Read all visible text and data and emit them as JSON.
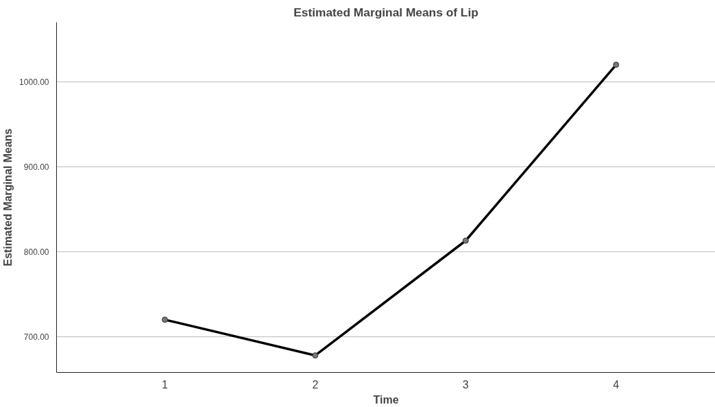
{
  "chart_data": {
    "type": "line",
    "title": "Estimated Marginal Means of Lip",
    "xlabel": "Time",
    "ylabel": "Estimated Marginal Means",
    "categories": [
      "1",
      "2",
      "3",
      "4"
    ],
    "series": [
      {
        "color": "#000000",
        "values": [
          720,
          678,
          813,
          1020
        ]
      }
    ],
    "ylim": [
      658,
      1070
    ],
    "yticks": [
      {
        "value": 700,
        "label": "700.00"
      },
      {
        "value": 800,
        "label": "800.00"
      },
      {
        "value": 900,
        "label": "900.00"
      },
      {
        "value": 1000,
        "label": "1000.00"
      }
    ],
    "grid": "y",
    "marker": "circle",
    "line_style": "solid"
  }
}
